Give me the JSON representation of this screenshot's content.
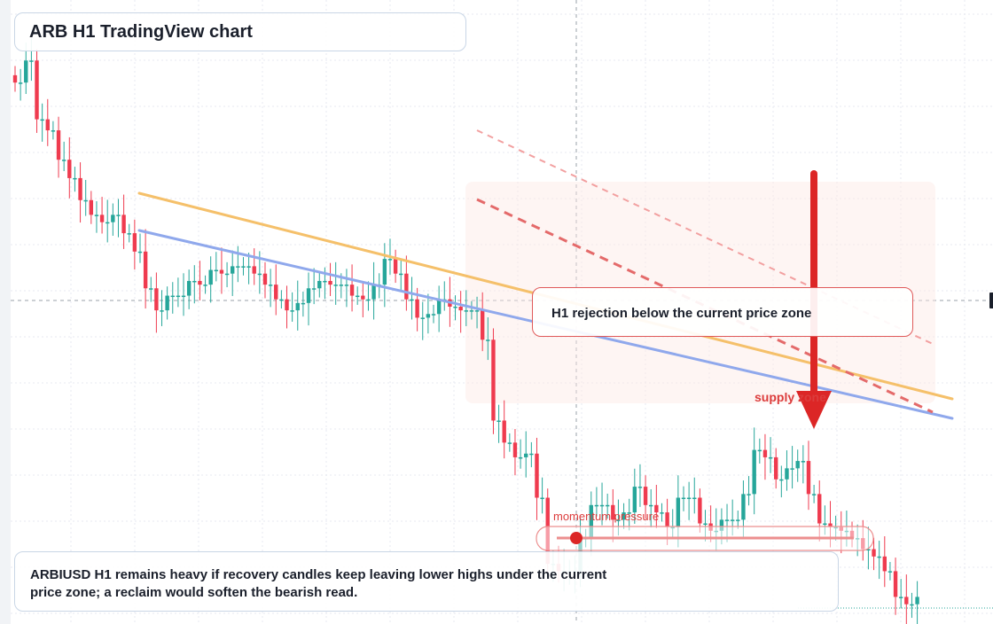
{
  "title": "ARB H1 TradingView chart",
  "callout": "H1 rejection below the current price zone",
  "note": "ARBIUSD H1 remains heavy if recovery candles keep leaving lower highs under the current price zone; a reclaim would soften the bearish read.",
  "labels": {
    "supply_zone": "supply zone",
    "momentum": "momentum pressure"
  },
  "colors": {
    "up": "#26a69a",
    "down": "#ef3b4f",
    "resistance": "#f5c06a",
    "support": "#8fa8ec",
    "projection": "#e46a6a",
    "arrow": "#dc2626",
    "zone_label": "#dc3c3c"
  },
  "chart_data": {
    "type": "candlestick",
    "timeframe": "H1",
    "symbol": "ARBIUSD",
    "y_axis": "unlabeled",
    "open": [
      0.82,
      0.8,
      0.8,
      0.86,
      0.86,
      0.7,
      0.7,
      0.67,
      0.67,
      0.59,
      0.59,
      0.54,
      0.54,
      0.48,
      0.48,
      0.44,
      0.44,
      0.42,
      0.42,
      0.44,
      0.44,
      0.39,
      0.39,
      0.34,
      0.34,
      0.24,
      0.24,
      0.18,
      0.18,
      0.22,
      0.22,
      0.22,
      0.22,
      0.26,
      0.26,
      0.25,
      0.25,
      0.29,
      0.29,
      0.28,
      0.28,
      0.3,
      0.3,
      0.3,
      0.3,
      0.28,
      0.28,
      0.25,
      0.25,
      0.21,
      0.21,
      0.18,
      0.18,
      0.2,
      0.2,
      0.24,
      0.24,
      0.26,
      0.26,
      0.25,
      0.25,
      0.25,
      0.25,
      0.22,
      0.22,
      0.21,
      0.21,
      0.25,
      0.25,
      0.32,
      0.32,
      0.28,
      0.28,
      0.21,
      0.21,
      0.16,
      0.16,
      0.17,
      0.17,
      0.21,
      0.21,
      0.19,
      0.19,
      0.18,
      0.18,
      0.18,
      0.18,
      0.1,
      0.1,
      -0.12,
      -0.12,
      -0.18,
      -0.18,
      -0.22,
      -0.22,
      -0.21,
      -0.21,
      -0.33,
      -0.33,
      -0.51,
      -0.51,
      -0.53,
      -0.53,
      -0.53,
      -0.53,
      -0.44,
      -0.44,
      -0.35,
      -0.35,
      -0.35,
      -0.35,
      -0.39,
      -0.39,
      -0.37,
      -0.37,
      -0.3,
      -0.3,
      -0.35,
      -0.35,
      -0.37,
      -0.37,
      -0.41,
      -0.41,
      -0.33,
      -0.33,
      -0.33,
      -0.33,
      -0.4,
      -0.4,
      -0.42,
      -0.42,
      -0.39,
      -0.39,
      -0.39,
      -0.39,
      -0.32,
      -0.32,
      -0.2,
      -0.2,
      -0.22,
      -0.22,
      -0.28,
      -0.28,
      -0.25,
      -0.25,
      -0.23,
      -0.23,
      -0.32,
      -0.32,
      -0.4,
      -0.4,
      -0.41,
      -0.41,
      -0.42,
      -0.42,
      -0.44,
      -0.44,
      -0.47,
      -0.47,
      -0.49,
      -0.49,
      -0.53,
      -0.53,
      -0.6,
      -0.6,
      -0.62,
      -0.62
    ],
    "close": [
      0.8,
      0.8,
      0.86,
      0.86,
      0.7,
      0.7,
      0.67,
      0.67,
      0.59,
      0.59,
      0.54,
      0.54,
      0.48,
      0.48,
      0.44,
      0.44,
      0.42,
      0.42,
      0.44,
      0.44,
      0.39,
      0.39,
      0.34,
      0.34,
      0.24,
      0.24,
      0.18,
      0.18,
      0.22,
      0.22,
      0.22,
      0.22,
      0.26,
      0.26,
      0.25,
      0.25,
      0.29,
      0.29,
      0.28,
      0.28,
      0.3,
      0.3,
      0.3,
      0.3,
      0.28,
      0.28,
      0.25,
      0.25,
      0.21,
      0.21,
      0.18,
      0.18,
      0.2,
      0.2,
      0.24,
      0.24,
      0.26,
      0.26,
      0.25,
      0.25,
      0.25,
      0.25,
      0.22,
      0.22,
      0.21,
      0.21,
      0.25,
      0.25,
      0.32,
      0.32,
      0.28,
      0.28,
      0.21,
      0.21,
      0.16,
      0.16,
      0.17,
      0.17,
      0.21,
      0.21,
      0.19,
      0.19,
      0.18,
      0.18,
      0.18,
      0.18,
      0.1,
      0.1,
      -0.12,
      -0.12,
      -0.18,
      -0.18,
      -0.22,
      -0.22,
      -0.21,
      -0.21,
      -0.33,
      -0.33,
      -0.51,
      -0.51,
      -0.53,
      -0.53,
      -0.53,
      -0.53,
      -0.44,
      -0.44,
      -0.35,
      -0.35,
      -0.35,
      -0.35,
      -0.39,
      -0.39,
      -0.37,
      -0.37,
      -0.3,
      -0.3,
      -0.35,
      -0.35,
      -0.37,
      -0.37,
      -0.41,
      -0.41,
      -0.33,
      -0.33,
      -0.33,
      -0.33,
      -0.4,
      -0.4,
      -0.42,
      -0.42,
      -0.39,
      -0.39,
      -0.39,
      -0.39,
      -0.32,
      -0.32,
      -0.2,
      -0.2,
      -0.22,
      -0.22,
      -0.28,
      -0.28,
      -0.25,
      -0.25,
      -0.23,
      -0.23,
      -0.32,
      -0.32,
      -0.4,
      -0.4,
      -0.41,
      -0.41,
      -0.42,
      -0.42,
      -0.44,
      -0.44,
      -0.47,
      -0.47,
      -0.49,
      -0.49,
      -0.53,
      -0.53,
      -0.6,
      -0.6,
      -0.62,
      -0.62,
      -0.6
    ]
  }
}
